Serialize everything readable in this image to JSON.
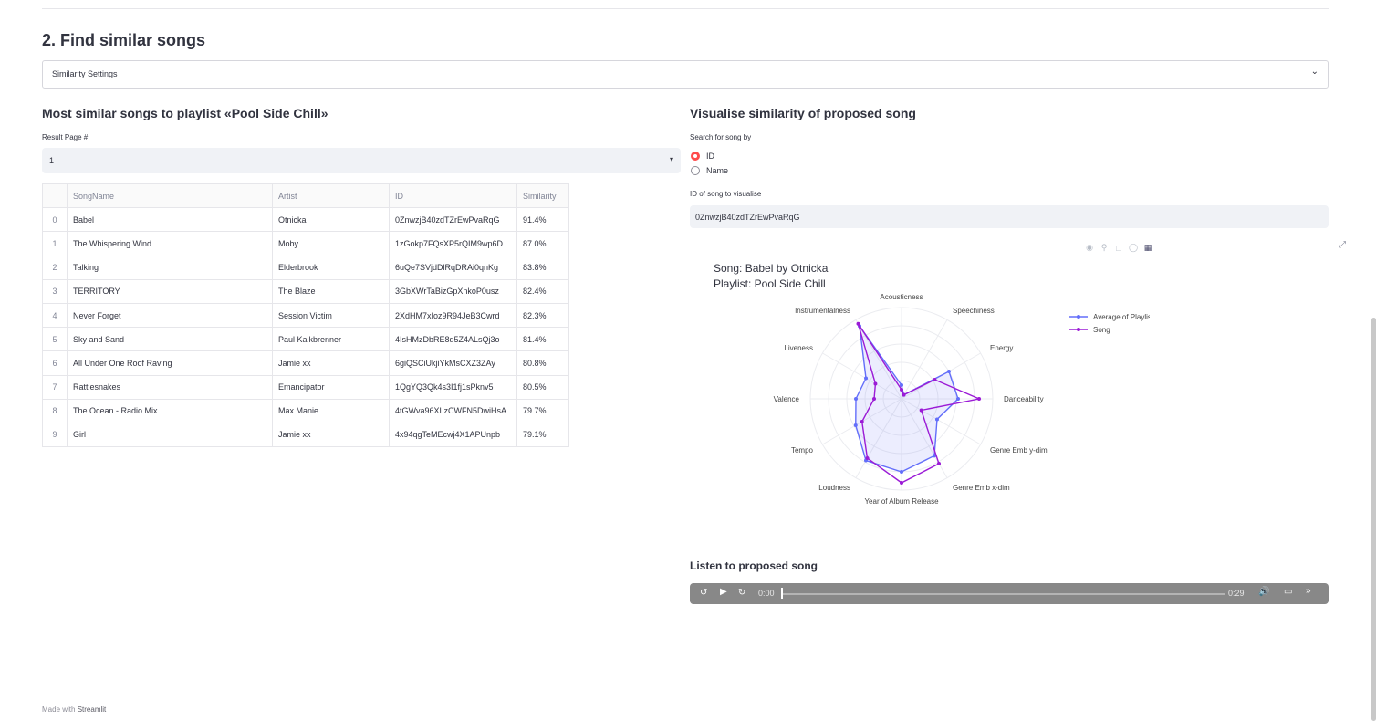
{
  "section": {
    "title": "2. Find similar songs"
  },
  "expander": {
    "label": "Similarity Settings"
  },
  "left": {
    "title": "Most similar songs to playlist «Pool Side Chill»",
    "page_label": "Result Page #",
    "page_value": "1"
  },
  "table": {
    "columns": [
      "",
      "SongName",
      "Artist",
      "ID",
      "Similarity"
    ],
    "rows": [
      [
        "0",
        "Babel",
        "Otnicka",
        "0ZnwzjB40zdTZrEwPvaRqG",
        "91.4%"
      ],
      [
        "1",
        "The Whispering Wind",
        "Moby",
        "1zGokp7FQsXP5rQIM9wp6D",
        "87.0%"
      ],
      [
        "2",
        "Talking",
        "Elderbrook",
        "6uQe7SVjdDlRqDRAi0qnKg",
        "83.8%"
      ],
      [
        "3",
        "TERRITORY",
        "The Blaze",
        "3GbXWrTaBizGpXnkoP0usz",
        "82.4%"
      ],
      [
        "4",
        "Never Forget",
        "Session Victim",
        "2XdHM7xIoz9R94JeB3Cwrd",
        "82.3%"
      ],
      [
        "5",
        "Sky and Sand",
        "Paul Kalkbrenner",
        "4IsHMzDbRE8q5Z4ALsQj3o",
        "81.4%"
      ],
      [
        "6",
        "All Under One Roof Raving",
        "Jamie xx",
        "6giQSCiUkjiYkMsCXZ3ZAy",
        "80.8%"
      ],
      [
        "7",
        "Rattlesnakes",
        "Emancipator",
        "1QgYQ3Qk4s3I1fj1sPknv5",
        "80.5%"
      ],
      [
        "8",
        "The Ocean - Radio Mix",
        "Max Manie",
        "4tGWva96XLzCWFN5DwiHsA",
        "79.7%"
      ],
      [
        "9",
        "Girl",
        "Jamie xx",
        "4x94qgTeMEcwj4X1APUnpb",
        "79.1%"
      ]
    ]
  },
  "right": {
    "title": "Visualise similarity of proposed song",
    "search_label": "Search for song by",
    "radio_options": [
      "ID",
      "Name"
    ],
    "radio_selected": "ID",
    "id_label": "ID of song to visualise",
    "id_value": "0ZnwzjB40zdTZrEwPvaRqG"
  },
  "modebar_icons": [
    "camera-icon",
    "zoom-icon",
    "box-select-icon",
    "lasso-icon",
    "plotly-logo-icon"
  ],
  "chart_data": {
    "type": "radar",
    "title_line1": "Song: Babel by Otnicka",
    "title_line2": "Playlist: Pool Side Chill",
    "axes": [
      "Acousticness",
      "Speechiness",
      "Energy",
      "Danceability",
      "Genre Emb y-dim",
      "Genre Emb x-dim",
      "Year of Album Release",
      "Loudness",
      "Tempo",
      "Valence",
      "Liveness",
      "Instrumentalness"
    ],
    "series": [
      {
        "name": "Average of Playlist",
        "color": "#636efa",
        "values": [
          0.15,
          0.05,
          0.6,
          0.62,
          0.45,
          0.72,
          0.8,
          0.78,
          0.58,
          0.5,
          0.45,
          0.92
        ]
      },
      {
        "name": "Song",
        "color": "#9b1bd6",
        "values": [
          0.1,
          0.05,
          0.42,
          0.85,
          0.25,
          0.82,
          0.92,
          0.75,
          0.5,
          0.3,
          0.33,
          0.95
        ]
      }
    ],
    "range": [
      0,
      1
    ],
    "legend": "top-right"
  },
  "audio": {
    "title": "Listen to proposed song",
    "current_time": "0:00",
    "duration": "0:29"
  },
  "footer": {
    "prefix": "Made with",
    "brand": "Streamlit"
  }
}
